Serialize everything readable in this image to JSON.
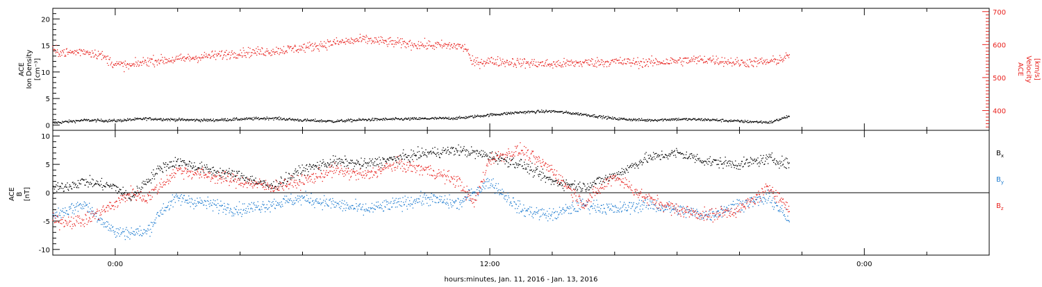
{
  "chart_data": [
    {
      "type": "scatter",
      "panel": "top",
      "ylabel_lines": [
        "ACE",
        "Ion Density",
        "[cm⁻³]"
      ],
      "ylabel_right_lines": [
        "ACE",
        "Velocity",
        "[km/s]"
      ],
      "ylim": [
        -1,
        22
      ],
      "yticks": [
        0,
        5,
        10,
        15,
        20
      ],
      "ylim_right": [
        340,
        710
      ],
      "yticks_right": [
        400,
        500,
        600,
        700
      ],
      "xlim": [
        -2,
        28
      ],
      "series": [
        {
          "color": "#000000",
          "axis": "left",
          "keyframes": [
            [
              -2,
              0.4
            ],
            [
              -1,
              0.9
            ],
            [
              0,
              0.8
            ],
            [
              1,
              1.2
            ],
            [
              2,
              1.0
            ],
            [
              3,
              0.9
            ],
            [
              4,
              1.1
            ],
            [
              5,
              1.3
            ],
            [
              6,
              0.9
            ],
            [
              7,
              0.7
            ],
            [
              8,
              1.0
            ],
            [
              9,
              1.1
            ],
            [
              10,
              1.2
            ],
            [
              11,
              1.3
            ],
            [
              12,
              1.9
            ],
            [
              13,
              2.4
            ],
            [
              14,
              2.6
            ],
            [
              15,
              2.0
            ],
            [
              16,
              1.2
            ],
            [
              17,
              0.9
            ],
            [
              18,
              1.1
            ],
            [
              19,
              1.0
            ],
            [
              20,
              0.7
            ],
            [
              21,
              0.5
            ],
            [
              21.6,
              1.7
            ]
          ]
        },
        {
          "color": "#e8211d",
          "axis": "right",
          "keyframes": [
            [
              -2,
              580
            ],
            [
              -1.5,
              575
            ],
            [
              -1,
              580
            ],
            [
              -0.5,
              570
            ],
            [
              0,
              540
            ],
            [
              0.5,
              535
            ],
            [
              1,
              550
            ],
            [
              2,
              555
            ],
            [
              3,
              565
            ],
            [
              4,
              575
            ],
            [
              5,
              580
            ],
            [
              6,
              590
            ],
            [
              7,
              605
            ],
            [
              8,
              615
            ],
            [
              9,
              605
            ],
            [
              10,
              598
            ],
            [
              11,
              596
            ],
            [
              11.3,
              585
            ],
            [
              11.4,
              545
            ],
            [
              12,
              550
            ],
            [
              13,
              545
            ],
            [
              14,
              540
            ],
            [
              15,
              545
            ],
            [
              16,
              548
            ],
            [
              17,
              545
            ],
            [
              18,
              550
            ],
            [
              19,
              555
            ],
            [
              20,
              545
            ],
            [
              21,
              548
            ],
            [
              21.5,
              560
            ],
            [
              21.6,
              570
            ]
          ]
        }
      ]
    },
    {
      "type": "scatter",
      "panel": "bottom",
      "ylabel_lines": [
        "ACE",
        "B",
        "[nT]"
      ],
      "ylim": [
        -11,
        11
      ],
      "yticks": [
        -10,
        -5,
        0,
        5,
        10
      ],
      "xlim": [
        -2,
        28
      ],
      "xticks": [
        {
          "x": 0,
          "label": "0:00"
        },
        {
          "x": 12,
          "label": "12:00"
        },
        {
          "x": 24,
          "label": "0:00"
        }
      ],
      "xlabel": "hours:minutes, Jan. 11, 2016 - Jan. 13, 2016",
      "legend": [
        "B",
        "B",
        "B"
      ],
      "legend_subscripts": [
        "x",
        "y",
        "z"
      ],
      "series": [
        {
          "color": "#000000",
          "keyframes": [
            [
              -2,
              0.5
            ],
            [
              -1,
              2
            ],
            [
              0,
              1
            ],
            [
              0.5,
              -1
            ],
            [
              1,
              2
            ],
            [
              1.5,
              4.5
            ],
            [
              2,
              5.5
            ],
            [
              3,
              4
            ],
            [
              4,
              3
            ],
            [
              5,
              1
            ],
            [
              6,
              4
            ],
            [
              7,
              5.5
            ],
            [
              8,
              5
            ],
            [
              9,
              6
            ],
            [
              10,
              7
            ],
            [
              11,
              7.5
            ],
            [
              12,
              6.5
            ],
            [
              13,
              5
            ],
            [
              14,
              2
            ],
            [
              15,
              1
            ],
            [
              16,
              3
            ],
            [
              17,
              6
            ],
            [
              18,
              7
            ],
            [
              19,
              5.5
            ],
            [
              20,
              5
            ],
            [
              21,
              6
            ],
            [
              21.6,
              5
            ]
          ]
        },
        {
          "color": "#1e7cd0",
          "keyframes": [
            [
              -2,
              -4
            ],
            [
              -1,
              -2
            ],
            [
              0,
              -7
            ],
            [
              1,
              -7
            ],
            [
              1.5,
              -3
            ],
            [
              2,
              -1
            ],
            [
              3,
              -2
            ],
            [
              4,
              -3
            ],
            [
              5,
              -2
            ],
            [
              6,
              -1
            ],
            [
              7,
              -2
            ],
            [
              8,
              -3
            ],
            [
              9,
              -2
            ],
            [
              10,
              -1
            ],
            [
              11,
              -2
            ],
            [
              12,
              2
            ],
            [
              13,
              -3
            ],
            [
              14,
              -4
            ],
            [
              15,
              -2
            ],
            [
              16,
              -3
            ],
            [
              17,
              -2
            ],
            [
              18,
              -3
            ],
            [
              19,
              -4
            ],
            [
              20,
              -2
            ],
            [
              21,
              -1
            ],
            [
              21.6,
              -5
            ]
          ]
        },
        {
          "color": "#e8211d",
          "keyframes": [
            [
              -2,
              -5
            ],
            [
              -1,
              -5
            ],
            [
              0,
              -2
            ],
            [
              0.5,
              0
            ],
            [
              1,
              -1
            ],
            [
              2,
              4
            ],
            [
              3,
              3
            ],
            [
              4,
              2
            ],
            [
              5,
              1
            ],
            [
              6,
              2
            ],
            [
              7,
              4
            ],
            [
              8,
              3
            ],
            [
              9,
              5
            ],
            [
              10,
              4
            ],
            [
              11,
              2
            ],
            [
              11.5,
              -2
            ],
            [
              12,
              6
            ],
            [
              13,
              7.5
            ],
            [
              14,
              4
            ],
            [
              15,
              -2
            ],
            [
              16,
              3
            ],
            [
              17,
              -1
            ],
            [
              18,
              -3
            ],
            [
              19,
              -4
            ],
            [
              20,
              -3
            ],
            [
              21,
              1
            ],
            [
              21.6,
              -3
            ]
          ]
        }
      ]
    }
  ]
}
